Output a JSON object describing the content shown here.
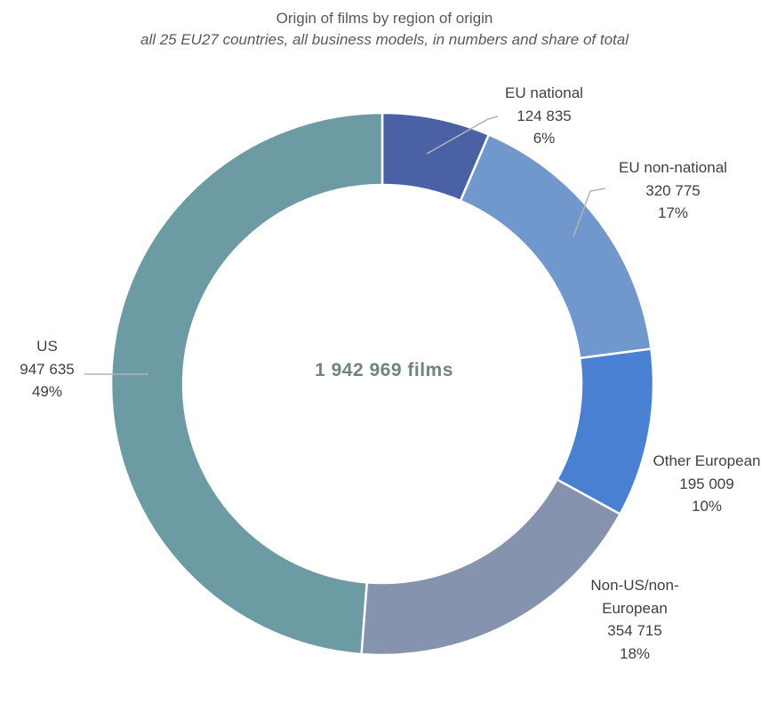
{
  "chart_data": {
    "type": "pie",
    "subtype": "donut",
    "title": "Origin of films by region of origin",
    "subtitle": "all 25 EU27 countries, all business models, in numbers and share of total",
    "center_label": "1 942 969 films",
    "total": 1942969,
    "start_angle_deg": 0,
    "direction": "clockwise",
    "legend_position": "outside-labels",
    "gap_color": "#ffffff",
    "segments": [
      {
        "label": "EU national",
        "value": 124835,
        "value_text": "124 835",
        "share_text": "6%",
        "share_pct": 6,
        "color": "#4b61a6"
      },
      {
        "label": "EU non-national",
        "value": 320775,
        "value_text": "320 775",
        "share_text": "17%",
        "share_pct": 17,
        "color": "#7098cc"
      },
      {
        "label": "Other European",
        "value": 195009,
        "value_text": "195 009",
        "share_text": "10%",
        "share_pct": 10,
        "color": "#4a80d1"
      },
      {
        "label": "Non-US/non-European",
        "value": 354715,
        "value_text": "354 715",
        "share_text": "18%",
        "share_pct": 18,
        "color": "#8593ae"
      },
      {
        "label": "US",
        "value": 947635,
        "value_text": "947 635",
        "share_text": "49%",
        "share_pct": 49,
        "color": "#6d9ba4"
      }
    ]
  }
}
